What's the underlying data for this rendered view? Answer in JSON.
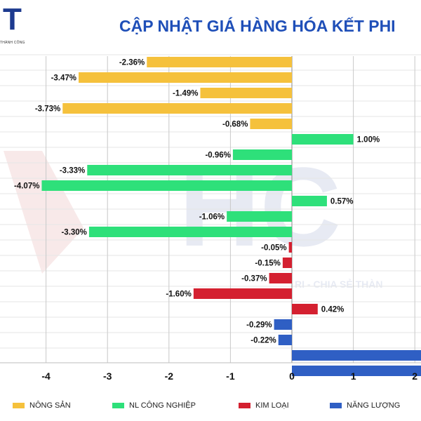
{
  "header": {
    "logo_letter": "T",
    "logo_subtitle": "THÀNH CÔNG",
    "title": "CẬP NHẬT GIÁ HÀNG HÓA KẾT PHI"
  },
  "watermark": {
    "tagline": "RI - CHIA SẺ THÀN"
  },
  "colors": {
    "nong_san": "#f5c13c",
    "nl_cong_nghiep": "#2ee07a",
    "kim_loai": "#d42030",
    "nang_luong": "#2f5fc4"
  },
  "chart_data": {
    "type": "bar",
    "orientation": "horizontal",
    "xlim": [
      -4.6,
      2.1
    ],
    "x_ticks": [
      "-4",
      "-3",
      "-2",
      "-1",
      "0",
      "1",
      "2"
    ],
    "grid": true,
    "legend_position": "bottom",
    "series": [
      {
        "name": "NÔNG SẢN",
        "color_key": "nong_san",
        "values": [
          -2.36,
          -3.47,
          -1.49,
          -3.73,
          -0.68
        ],
        "labels": [
          "-2.36%",
          "-3.47%",
          "-1.49%",
          "-3.73%",
          "-0.68%"
        ]
      },
      {
        "name": "NL CÔNG NGHIỆP",
        "color_key": "nl_cong_nghiep",
        "values": [
          1.0,
          -0.96,
          -3.33,
          -4.07,
          0.57,
          -1.06,
          -3.3
        ],
        "labels": [
          "1.00%",
          "-0.96%",
          "-3.33%",
          "-4.07%",
          "0.57%",
          "-1.06%",
          "-3.30%"
        ]
      },
      {
        "name": "KIM LOẠI",
        "color_key": "kim_loai",
        "values": [
          -0.05,
          -0.15,
          -0.37,
          -1.6,
          0.42
        ],
        "labels": [
          "-0.05%",
          "-0.15%",
          "-0.37%",
          "-1.60%",
          "0.42%"
        ]
      },
      {
        "name": "NĂNG LƯỢNG",
        "color_key": "nang_luong",
        "values": [
          -0.29,
          -0.22,
          2.4,
          2.4
        ],
        "labels": [
          "-0.29%",
          "-0.22%",
          "",
          ""
        ]
      }
    ]
  }
}
